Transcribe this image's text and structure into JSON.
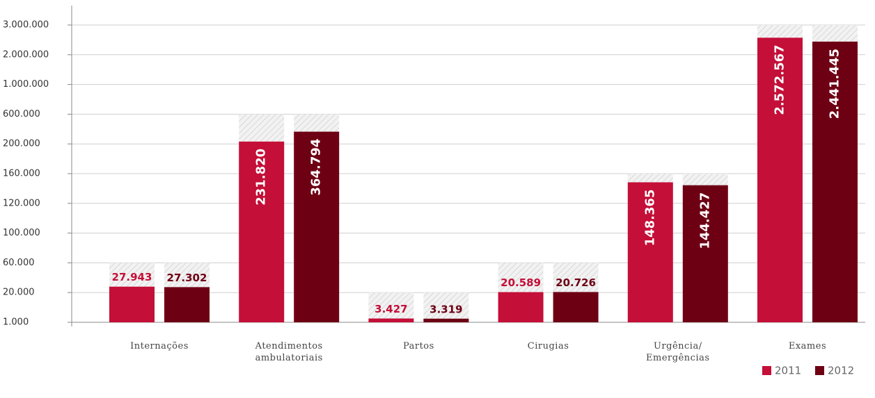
{
  "chart_data": {
    "type": "bar",
    "categories": [
      "Internações",
      "Atendimentos ambulatoriais",
      "Partos",
      "Cirugias",
      "Urgência/ Emergências",
      "Exames"
    ],
    "series": [
      {
        "name": "2011",
        "color": "#c40f38",
        "values": [
          27943,
          231820,
          3427,
          20589,
          148365,
          2572567
        ],
        "value_labels": [
          "27.943",
          "231.820",
          "3.427",
          "20.589",
          "148.365",
          "2.572.567"
        ]
      },
      {
        "name": "2012",
        "color": "#6e0014",
        "values": [
          27302,
          364794,
          3319,
          20726,
          144427,
          2441445
        ],
        "value_labels": [
          "27.302",
          "364.794",
          "3.319",
          "20.726",
          "144.427",
          "2.441.445"
        ]
      }
    ],
    "ylim": [
      1000,
      3000000
    ],
    "yticks": [
      {
        "value": 1000,
        "label": "1.000"
      },
      {
        "value": 20000,
        "label": "20.000"
      },
      {
        "value": 60000,
        "label": "60.000"
      },
      {
        "value": 100000,
        "label": "100.000"
      },
      {
        "value": 120000,
        "label": "120.000"
      },
      {
        "value": 160000,
        "label": "160.000"
      },
      {
        "value": 200000,
        "label": "200.000"
      },
      {
        "value": 600000,
        "label": "600.000"
      },
      {
        "value": 1000000,
        "label": "1.000.000"
      },
      {
        "value": 2000000,
        "label": "2.000.000"
      },
      {
        "value": 3000000,
        "label": "3.000.000"
      }
    ],
    "grid": true,
    "legend": "bottom-right"
  }
}
